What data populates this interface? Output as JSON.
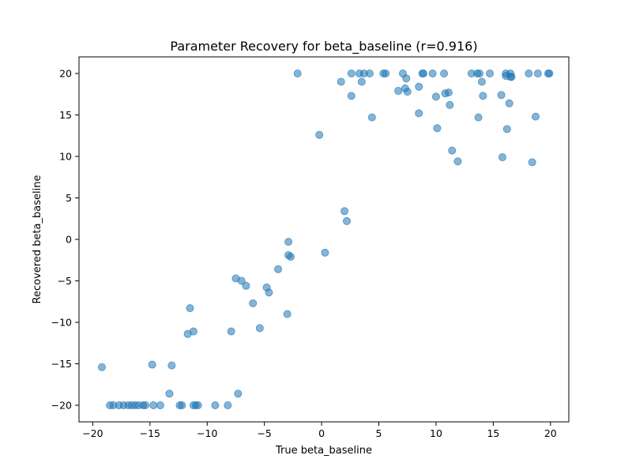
{
  "chart_data": {
    "type": "scatter",
    "title": "Parameter Recovery for beta_baseline (r=0.916)",
    "xlabel": "True beta_baseline",
    "ylabel": "Recovered beta_baseline",
    "xlim": [
      -21.2,
      21.6
    ],
    "ylim": [
      -22.0,
      22.0
    ],
    "xticks": [
      -20,
      -15,
      -10,
      -5,
      0,
      5,
      10,
      15,
      20
    ],
    "yticks": [
      -20,
      -15,
      -10,
      -5,
      0,
      5,
      10,
      15,
      20
    ],
    "grid": false,
    "marker_color": "#1f77b4",
    "marker_alpha": 0.55,
    "points": [
      [
        -19.2,
        -15.4
      ],
      [
        -18.5,
        -20.0
      ],
      [
        -18.2,
        -20.0
      ],
      [
        -17.7,
        -20.0
      ],
      [
        -17.3,
        -20.0
      ],
      [
        -16.9,
        -20.0
      ],
      [
        -16.6,
        -20.0
      ],
      [
        -16.3,
        -20.0
      ],
      [
        -16.0,
        -20.0
      ],
      [
        -15.6,
        -20.0
      ],
      [
        -15.4,
        -20.0
      ],
      [
        -14.8,
        -15.1
      ],
      [
        -14.7,
        -20.0
      ],
      [
        -14.1,
        -20.0
      ],
      [
        -13.3,
        -18.6
      ],
      [
        -13.1,
        -15.2
      ],
      [
        -12.4,
        -20.0
      ],
      [
        -12.2,
        -20.0
      ],
      [
        -11.7,
        -11.4
      ],
      [
        -11.5,
        -8.3
      ],
      [
        -11.2,
        -20.0
      ],
      [
        -11.2,
        -11.1
      ],
      [
        -11.0,
        -20.0
      ],
      [
        -10.8,
        -20.0
      ],
      [
        -9.3,
        -20.0
      ],
      [
        -8.2,
        -20.0
      ],
      [
        -7.9,
        -11.1
      ],
      [
        -7.3,
        -18.6
      ],
      [
        -7.5,
        -4.7
      ],
      [
        -7.0,
        -5.0
      ],
      [
        -6.6,
        -5.6
      ],
      [
        -6.0,
        -7.7
      ],
      [
        -5.4,
        -10.7
      ],
      [
        -4.8,
        -5.8
      ],
      [
        -4.6,
        -6.4
      ],
      [
        -3.8,
        -3.6
      ],
      [
        -3.0,
        -9.0
      ],
      [
        -2.9,
        -1.9
      ],
      [
        -2.9,
        -0.3
      ],
      [
        -2.7,
        -2.1
      ],
      [
        -2.1,
        20.0
      ],
      [
        -0.2,
        12.6
      ],
      [
        0.3,
        -1.6
      ],
      [
        1.7,
        19.0
      ],
      [
        2.0,
        3.4
      ],
      [
        2.2,
        2.2
      ],
      [
        2.6,
        17.3
      ],
      [
        2.6,
        20.0
      ],
      [
        3.3,
        20.0
      ],
      [
        3.5,
        19.0
      ],
      [
        3.7,
        20.0
      ],
      [
        4.2,
        20.0
      ],
      [
        4.4,
        14.7
      ],
      [
        5.4,
        20.0
      ],
      [
        5.6,
        20.0
      ],
      [
        6.7,
        17.9
      ],
      [
        7.1,
        20.0
      ],
      [
        7.3,
        18.2
      ],
      [
        7.4,
        19.4
      ],
      [
        7.5,
        17.8
      ],
      [
        8.5,
        15.2
      ],
      [
        8.5,
        18.4
      ],
      [
        8.8,
        20.0
      ],
      [
        8.9,
        20.0
      ],
      [
        9.7,
        20.0
      ],
      [
        10.0,
        17.2
      ],
      [
        10.1,
        13.4
      ],
      [
        10.7,
        20.0
      ],
      [
        10.8,
        17.6
      ],
      [
        11.1,
        17.7
      ],
      [
        11.2,
        16.2
      ],
      [
        11.4,
        10.7
      ],
      [
        11.9,
        9.4
      ],
      [
        13.1,
        20.0
      ],
      [
        13.6,
        20.0
      ],
      [
        13.7,
        14.7
      ],
      [
        13.8,
        20.0
      ],
      [
        14.0,
        19.0
      ],
      [
        14.1,
        17.3
      ],
      [
        14.7,
        20.0
      ],
      [
        15.7,
        17.4
      ],
      [
        15.8,
        9.9
      ],
      [
        16.1,
        20.0
      ],
      [
        16.1,
        19.7
      ],
      [
        16.2,
        13.3
      ],
      [
        16.4,
        16.4
      ],
      [
        16.5,
        20.0
      ],
      [
        16.5,
        19.6
      ],
      [
        16.6,
        19.6
      ],
      [
        18.1,
        20.0
      ],
      [
        18.4,
        9.3
      ],
      [
        18.7,
        14.8
      ],
      [
        18.9,
        20.0
      ],
      [
        19.8,
        20.0
      ],
      [
        19.9,
        20.0
      ]
    ]
  }
}
